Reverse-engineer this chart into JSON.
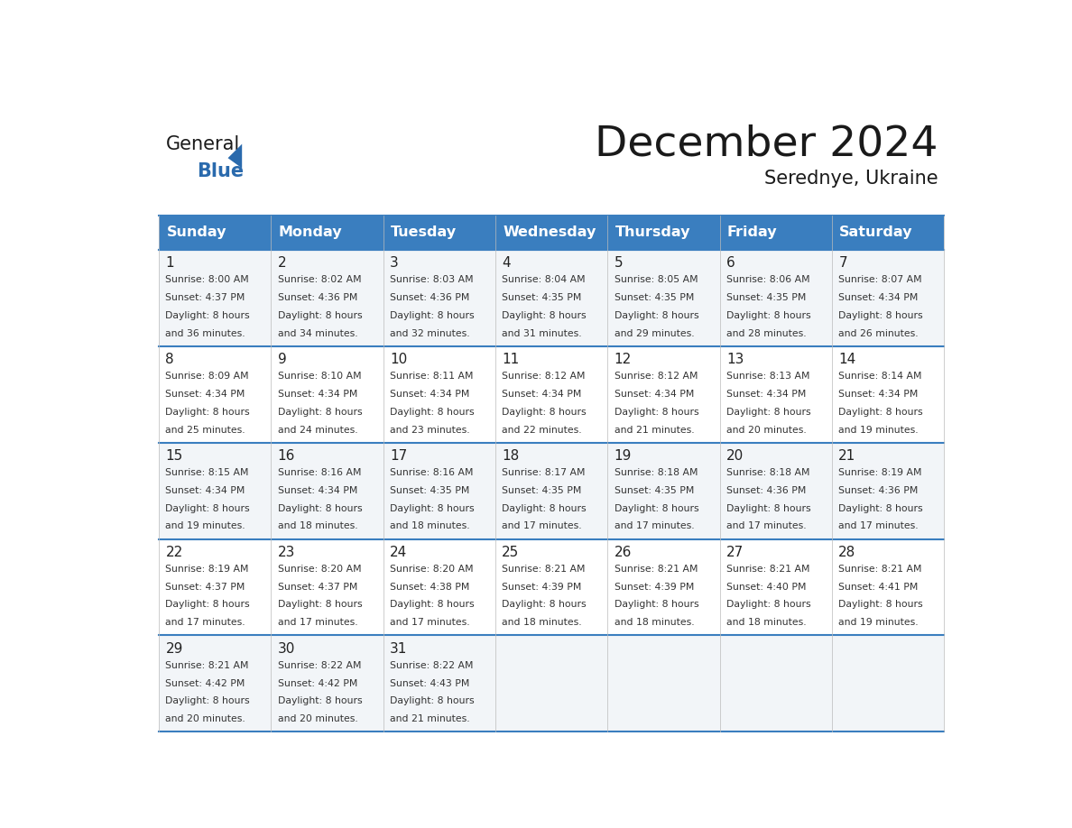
{
  "title": "December 2024",
  "subtitle": "Serednye, Ukraine",
  "days_of_week": [
    "Sunday",
    "Monday",
    "Tuesday",
    "Wednesday",
    "Thursday",
    "Friday",
    "Saturday"
  ],
  "header_bg": "#3a7ebf",
  "header_text_color": "#ffffff",
  "grid_line_color": "#3a7ebf",
  "logo_general_color": "#1a1a1a",
  "logo_blue_color": "#2a6aad",
  "calendar_data": [
    [
      {
        "day": 1,
        "sunrise": "8:00 AM",
        "sunset": "4:37 PM",
        "daylight_minutes": "36"
      },
      {
        "day": 2,
        "sunrise": "8:02 AM",
        "sunset": "4:36 PM",
        "daylight_minutes": "34"
      },
      {
        "day": 3,
        "sunrise": "8:03 AM",
        "sunset": "4:36 PM",
        "daylight_minutes": "32"
      },
      {
        "day": 4,
        "sunrise": "8:04 AM",
        "sunset": "4:35 PM",
        "daylight_minutes": "31"
      },
      {
        "day": 5,
        "sunrise": "8:05 AM",
        "sunset": "4:35 PM",
        "daylight_minutes": "29"
      },
      {
        "day": 6,
        "sunrise": "8:06 AM",
        "sunset": "4:35 PM",
        "daylight_minutes": "28"
      },
      {
        "day": 7,
        "sunrise": "8:07 AM",
        "sunset": "4:34 PM",
        "daylight_minutes": "26"
      }
    ],
    [
      {
        "day": 8,
        "sunrise": "8:09 AM",
        "sunset": "4:34 PM",
        "daylight_minutes": "25"
      },
      {
        "day": 9,
        "sunrise": "8:10 AM",
        "sunset": "4:34 PM",
        "daylight_minutes": "24"
      },
      {
        "day": 10,
        "sunrise": "8:11 AM",
        "sunset": "4:34 PM",
        "daylight_minutes": "23"
      },
      {
        "day": 11,
        "sunrise": "8:12 AM",
        "sunset": "4:34 PM",
        "daylight_minutes": "22"
      },
      {
        "day": 12,
        "sunrise": "8:12 AM",
        "sunset": "4:34 PM",
        "daylight_minutes": "21"
      },
      {
        "day": 13,
        "sunrise": "8:13 AM",
        "sunset": "4:34 PM",
        "daylight_minutes": "20"
      },
      {
        "day": 14,
        "sunrise": "8:14 AM",
        "sunset": "4:34 PM",
        "daylight_minutes": "19"
      }
    ],
    [
      {
        "day": 15,
        "sunrise": "8:15 AM",
        "sunset": "4:34 PM",
        "daylight_minutes": "19"
      },
      {
        "day": 16,
        "sunrise": "8:16 AM",
        "sunset": "4:34 PM",
        "daylight_minutes": "18"
      },
      {
        "day": 17,
        "sunrise": "8:16 AM",
        "sunset": "4:35 PM",
        "daylight_minutes": "18"
      },
      {
        "day": 18,
        "sunrise": "8:17 AM",
        "sunset": "4:35 PM",
        "daylight_minutes": "17"
      },
      {
        "day": 19,
        "sunrise": "8:18 AM",
        "sunset": "4:35 PM",
        "daylight_minutes": "17"
      },
      {
        "day": 20,
        "sunrise": "8:18 AM",
        "sunset": "4:36 PM",
        "daylight_minutes": "17"
      },
      {
        "day": 21,
        "sunrise": "8:19 AM",
        "sunset": "4:36 PM",
        "daylight_minutes": "17"
      }
    ],
    [
      {
        "day": 22,
        "sunrise": "8:19 AM",
        "sunset": "4:37 PM",
        "daylight_minutes": "17"
      },
      {
        "day": 23,
        "sunrise": "8:20 AM",
        "sunset": "4:37 PM",
        "daylight_minutes": "17"
      },
      {
        "day": 24,
        "sunrise": "8:20 AM",
        "sunset": "4:38 PM",
        "daylight_minutes": "17"
      },
      {
        "day": 25,
        "sunrise": "8:21 AM",
        "sunset": "4:39 PM",
        "daylight_minutes": "18"
      },
      {
        "day": 26,
        "sunrise": "8:21 AM",
        "sunset": "4:39 PM",
        "daylight_minutes": "18"
      },
      {
        "day": 27,
        "sunrise": "8:21 AM",
        "sunset": "4:40 PM",
        "daylight_minutes": "18"
      },
      {
        "day": 28,
        "sunrise": "8:21 AM",
        "sunset": "4:41 PM",
        "daylight_minutes": "19"
      }
    ],
    [
      {
        "day": 29,
        "sunrise": "8:21 AM",
        "sunset": "4:42 PM",
        "daylight_minutes": "20"
      },
      {
        "day": 30,
        "sunrise": "8:22 AM",
        "sunset": "4:42 PM",
        "daylight_minutes": "20"
      },
      {
        "day": 31,
        "sunrise": "8:22 AM",
        "sunset": "4:43 PM",
        "daylight_minutes": "21"
      },
      null,
      null,
      null,
      null
    ]
  ]
}
